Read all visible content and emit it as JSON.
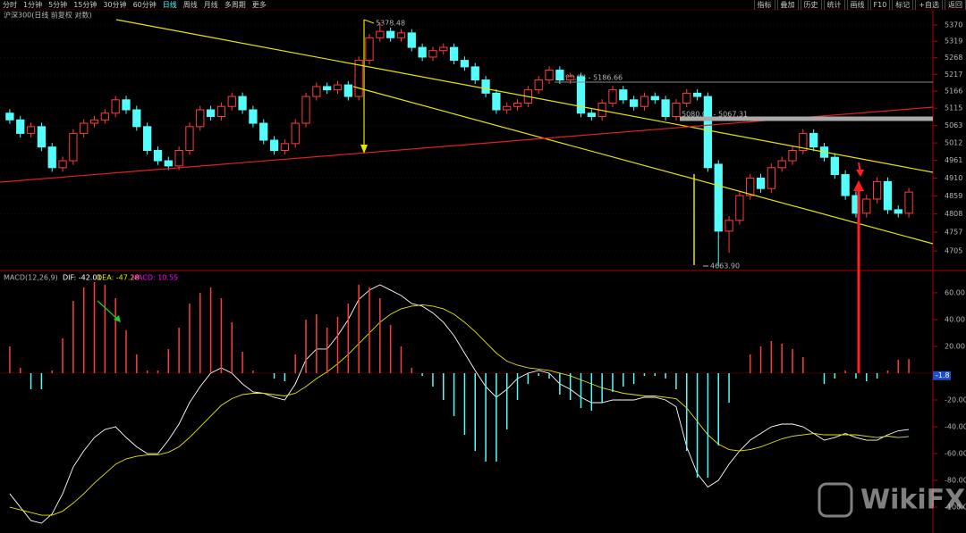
{
  "toolbar": {
    "periods": [
      "分时",
      "1分钟",
      "5分钟",
      "15分钟",
      "30分钟",
      "60分钟",
      "日线",
      "周线",
      "月线",
      "多周期",
      "更多"
    ],
    "active_index": 6,
    "tools": [
      "指标",
      "叠加",
      "历史",
      "统计",
      "画线",
      "F10",
      "标记",
      "+自选",
      "返回"
    ]
  },
  "chart_data": [
    {
      "type": "candlestick",
      "title": "沪深300(日线 前复权 对数)",
      "log": true,
      "grid": true,
      "colors": {
        "up": "#ff3c3c",
        "down": "#54fcfc"
      },
      "open": [
        5100,
        5080,
        5040,
        5060,
        5000,
        4940,
        4960,
        5040,
        5070,
        5080,
        5100,
        5140,
        5110,
        5060,
        4990,
        4960,
        4945,
        4990,
        5060,
        5110,
        5090,
        5120,
        5150,
        5110,
        5070,
        5020,
        4990,
        5010,
        5070,
        5150,
        5180,
        5170,
        5185,
        5150,
        5260,
        5330,
        5350,
        5330,
        5345,
        5300,
        5270,
        5290,
        5300,
        5260,
        5240,
        5200,
        5160,
        5110,
        5120,
        5130,
        5170,
        5200,
        5230,
        5200,
        5210,
        5100,
        5090,
        5130,
        5170,
        5140,
        5120,
        5150,
        5140,
        5090,
        5130,
        5160,
        5150,
        4950,
        4760,
        4790,
        4860,
        4910,
        4880,
        4940,
        4960,
        4990,
        5040,
        5000,
        4970,
        4920,
        4860,
        4810,
        4850,
        4900,
        4820,
        4810
      ],
      "high": [
        5112,
        5092,
        5072,
        5072,
        5012,
        4972,
        5052,
        5082,
        5092,
        5112,
        5152,
        5152,
        5122,
        5072,
        5002,
        4972,
        5002,
        5072,
        5122,
        5122,
        5132,
        5162,
        5162,
        5122,
        5082,
        5032,
        5022,
        5082,
        5162,
        5192,
        5192,
        5197,
        5197,
        5272,
        5342,
        5378.48,
        5362,
        5357,
        5357,
        5312,
        5302,
        5312,
        5312,
        5272,
        5252,
        5212,
        5172,
        5132,
        5142,
        5182,
        5212,
        5242,
        5242,
        5222,
        5222,
        5112,
        5142,
        5182,
        5182,
        5152,
        5162,
        5162,
        5152,
        5142,
        5172,
        5172,
        5162,
        4962,
        4802,
        4872,
        4922,
        4922,
        4952,
        4972,
        5002,
        5052,
        5052,
        5012,
        4982,
        4932,
        4872,
        4862,
        4912,
        4912,
        4832,
        4882
      ],
      "low": [
        5068,
        5028,
        5028,
        4988,
        4928,
        4928,
        4948,
        5028,
        5058,
        5068,
        5088,
        5098,
        5048,
        4978,
        4948,
        4933,
        4933,
        4978,
        5048,
        5078,
        5078,
        5108,
        5098,
        5058,
        5008,
        4978,
        4978,
        4998,
        5058,
        5138,
        5158,
        5158,
        5138,
        5138,
        5248,
        5318,
        5318,
        5318,
        5288,
        5258,
        5258,
        5278,
        5248,
        5228,
        5188,
        5148,
        5098,
        5098,
        5108,
        5118,
        5158,
        5188,
        5188,
        5188,
        5088,
        5078,
        5078,
        5118,
        5128,
        5108,
        5108,
        5128,
        5078,
        5078,
        5118,
        5138,
        4928,
        4663.9,
        4700,
        4778,
        4848,
        4868,
        4868,
        4928,
        4948,
        4978,
        4988,
        4958,
        4908,
        4848,
        4798,
        4798,
        4838,
        4808,
        4798,
        4798
      ],
      "close": [
        5080,
        5040,
        5060,
        5000,
        4940,
        4960,
        5040,
        5070,
        5080,
        5100,
        5140,
        5110,
        5060,
        4990,
        4960,
        4945,
        4990,
        5060,
        5110,
        5090,
        5120,
        5150,
        5110,
        5070,
        5020,
        4990,
        5010,
        5070,
        5150,
        5180,
        5170,
        5185,
        5150,
        5260,
        5330,
        5350,
        5330,
        5345,
        5300,
        5270,
        5290,
        5300,
        5260,
        5240,
        5200,
        5160,
        5110,
        5120,
        5130,
        5170,
        5200,
        5230,
        5200,
        5210,
        5100,
        5090,
        5130,
        5170,
        5140,
        5120,
        5150,
        5140,
        5090,
        5130,
        5160,
        5150,
        4940,
        4760,
        4790,
        4860,
        4910,
        4880,
        4940,
        4960,
        4990,
        5040,
        5000,
        4970,
        4920,
        4860,
        4810,
        4850,
        4900,
        4820,
        4810,
        4870
      ],
      "ylim": [
        4654,
        5398
      ],
      "yticks": [
        5370,
        5319,
        5268,
        5217,
        5166,
        5115,
        5063,
        5012,
        4961,
        4910,
        4859,
        4808,
        4757,
        4705
      ],
      "annotations": [
        "5378.48",
        "5190.88 - 5186.66",
        "5080.00 - 5067.31",
        "4663.90"
      ],
      "watermark": "WikiFX"
    },
    {
      "type": "macd",
      "title": "MACD(12,26,9)",
      "series": [
        {
          "name": "DIF: -42.01",
          "color": "#ffffff",
          "values": [
            -90,
            -100,
            -110,
            -112,
            -105,
            -90,
            -70,
            -58,
            -48,
            -42,
            -40,
            -48,
            -55,
            -60,
            -60,
            -50,
            -38,
            -22,
            -10,
            0,
            4,
            0,
            -8,
            -14,
            -15,
            -18,
            -20,
            -8,
            10,
            18,
            18,
            28,
            40,
            55,
            62,
            66,
            62,
            58,
            52,
            50,
            45,
            38,
            28,
            15,
            2,
            -10,
            -18,
            -12,
            -4,
            0,
            2,
            0,
            -8,
            -12,
            -18,
            -22,
            -22,
            -20,
            -20,
            -20,
            -18,
            -18,
            -20,
            -25,
            -55,
            -75,
            -85,
            -80,
            -68,
            -58,
            -50,
            -45,
            -40,
            -38,
            -38,
            -40,
            -45,
            -50,
            -48,
            -45,
            -48,
            -50,
            -50,
            -46,
            -43,
            -42.01
          ]
        },
        {
          "name": "DEA: -47.28",
          "color": "#e6e600",
          "values": [
            -100,
            -102,
            -104,
            -106,
            -106,
            -103,
            -97,
            -90,
            -82,
            -75,
            -68,
            -64,
            -62,
            -61,
            -61,
            -59,
            -55,
            -48,
            -40,
            -32,
            -24,
            -19,
            -16,
            -15,
            -15,
            -16,
            -17,
            -15,
            -10,
            -4,
            1,
            7,
            14,
            22,
            30,
            38,
            44,
            48,
            50,
            51,
            50,
            48,
            44,
            38,
            31,
            23,
            15,
            9,
            6,
            4,
            3,
            2,
            0,
            -2,
            -5,
            -8,
            -11,
            -13,
            -15,
            -16,
            -17,
            -17,
            -18,
            -19,
            -26,
            -36,
            -46,
            -53,
            -57,
            -58,
            -57,
            -55,
            -52,
            -49,
            -47,
            -46,
            -45,
            -46,
            -46,
            -46,
            -46,
            -47,
            -48,
            -47,
            -48,
            -47.28
          ]
        },
        {
          "name": "MACD: 10.55",
          "color": "#ff00ff",
          "up_color": "#ff3c3c",
          "down_color": "#54fcfc",
          "values": [
            20,
            4,
            -12,
            -12,
            2,
            26,
            54,
            64,
            68,
            66,
            56,
            32,
            14,
            2,
            2,
            18,
            34,
            52,
            60,
            64,
            56,
            38,
            16,
            2,
            0,
            -4,
            -6,
            14,
            40,
            44,
            34,
            42,
            52,
            66,
            64,
            56,
            36,
            20,
            4,
            -2,
            -10,
            -20,
            -32,
            -46,
            -58,
            -66,
            -66,
            -42,
            -20,
            -8,
            -2,
            -4,
            -16,
            -20,
            -26,
            -28,
            -22,
            -14,
            -10,
            -8,
            -2,
            -2,
            -4,
            -12,
            -58,
            -78,
            -78,
            -54,
            -22,
            0,
            14,
            20,
            24,
            22,
            18,
            12,
            0,
            -8,
            -4,
            2,
            -4,
            -6,
            -4,
            2,
            10,
            10.55
          ]
        }
      ],
      "ylim": [
        -119.3,
        75.3
      ],
      "yticks": [
        {
          "value": 60,
          "label": "60.00"
        },
        {
          "value": 40,
          "label": "40.00"
        },
        {
          "value": 20,
          "label": "20.00"
        },
        {
          "value": -20,
          "label": "-20.00"
        },
        {
          "value": -40,
          "label": "-40.00"
        },
        {
          "value": -60,
          "label": "-60.00"
        },
        {
          "value": -80,
          "label": "-80.00"
        },
        {
          "value": -100,
          "label": "-100.0"
        }
      ],
      "current_value": -1.8
    }
  ]
}
